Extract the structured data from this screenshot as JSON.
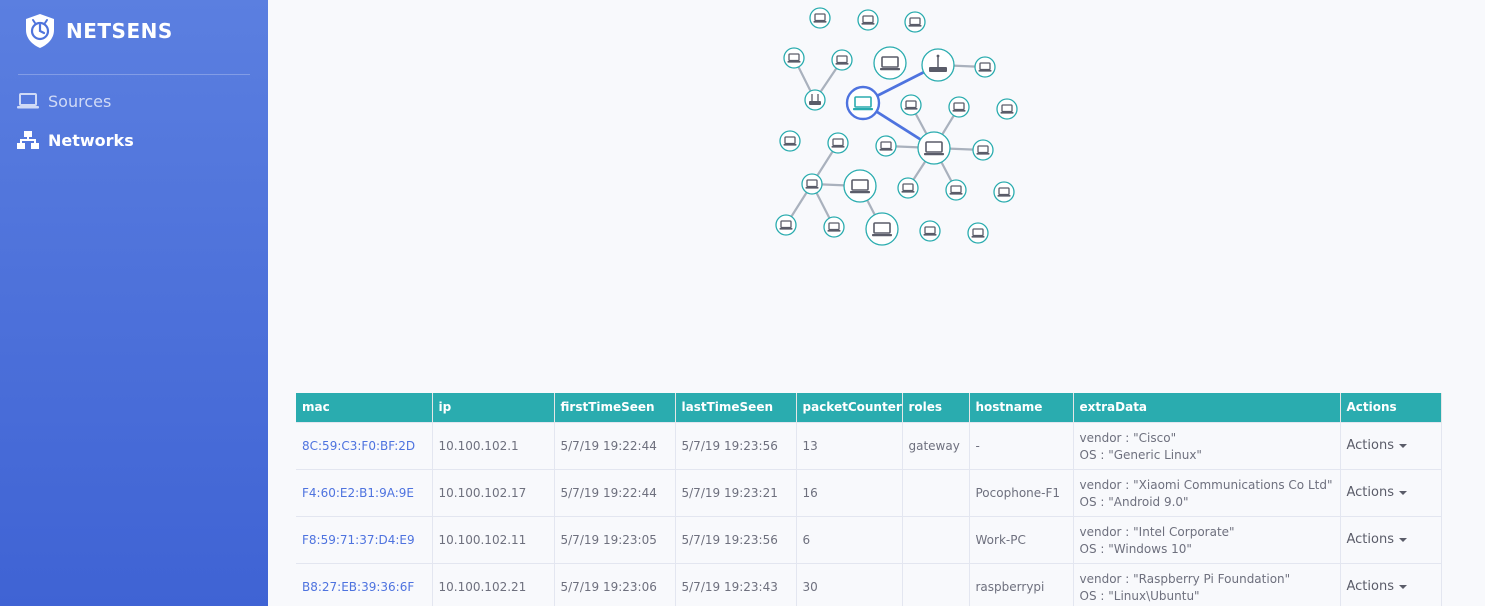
{
  "brand": {
    "name": "NETSENS",
    "logo_icon": "shield-logo-icon"
  },
  "sidebar": {
    "items": [
      {
        "label": "Sources",
        "icon": "laptop-icon",
        "active": false
      },
      {
        "label": "Networks",
        "icon": "network-icon",
        "active": true
      }
    ]
  },
  "colors": {
    "sidebar_top": "#5b7fe0",
    "sidebar_bottom": "#3f63d4",
    "table_header": "#2aacaf",
    "link": "#4e73df",
    "node_stroke": "#2aacaf",
    "selected_node": "#4e73df"
  },
  "graph": {
    "node_icon": "laptop-icon",
    "router_icon": "router-icon"
  },
  "table": {
    "columns": [
      "mac",
      "ip",
      "firstTimeSeen",
      "lastTimeSeen",
      "packetCounter",
      "roles",
      "hostname",
      "extraData",
      "Actions"
    ],
    "rows": [
      {
        "mac": "8C:59:C3:F0:BF:2D",
        "ip": "10.100.102.1",
        "first": "5/7/19 19:22:44",
        "last": "5/7/19 19:23:56",
        "packets": "13",
        "roles": "gateway",
        "hostname": "-",
        "vendor": "vendor : \"Cisco\"",
        "os": "OS : \"Generic Linux\"",
        "action": "Actions"
      },
      {
        "mac": "F4:60:E2:B1:9A:9E",
        "ip": "10.100.102.17",
        "first": "5/7/19 19:22:44",
        "last": "5/7/19 19:23:21",
        "packets": "16",
        "roles": "",
        "hostname": "Pocophone-F1",
        "vendor": "vendor : \"Xiaomi Communications Co Ltd\"",
        "os": "OS : \"Android 9.0\"",
        "action": "Actions"
      },
      {
        "mac": "F8:59:71:37:D4:E9",
        "ip": "10.100.102.11",
        "first": "5/7/19 19:23:05",
        "last": "5/7/19 19:23:56",
        "packets": "6",
        "roles": "",
        "hostname": "Work-PC",
        "vendor": "vendor : \"Intel Corporate\"",
        "os": "OS : \"Windows 10\"",
        "action": "Actions"
      },
      {
        "mac": "B8:27:EB:39:36:6F",
        "ip": "10.100.102.21",
        "first": "5/7/19 19:23:06",
        "last": "5/7/19 19:23:43",
        "packets": "30",
        "roles": "",
        "hostname": "raspberrypi",
        "vendor": "vendor : \"Raspberry Pi Foundation\"",
        "os": "OS : \"Linux\\Ubuntu\"",
        "action": "Actions"
      }
    ]
  }
}
